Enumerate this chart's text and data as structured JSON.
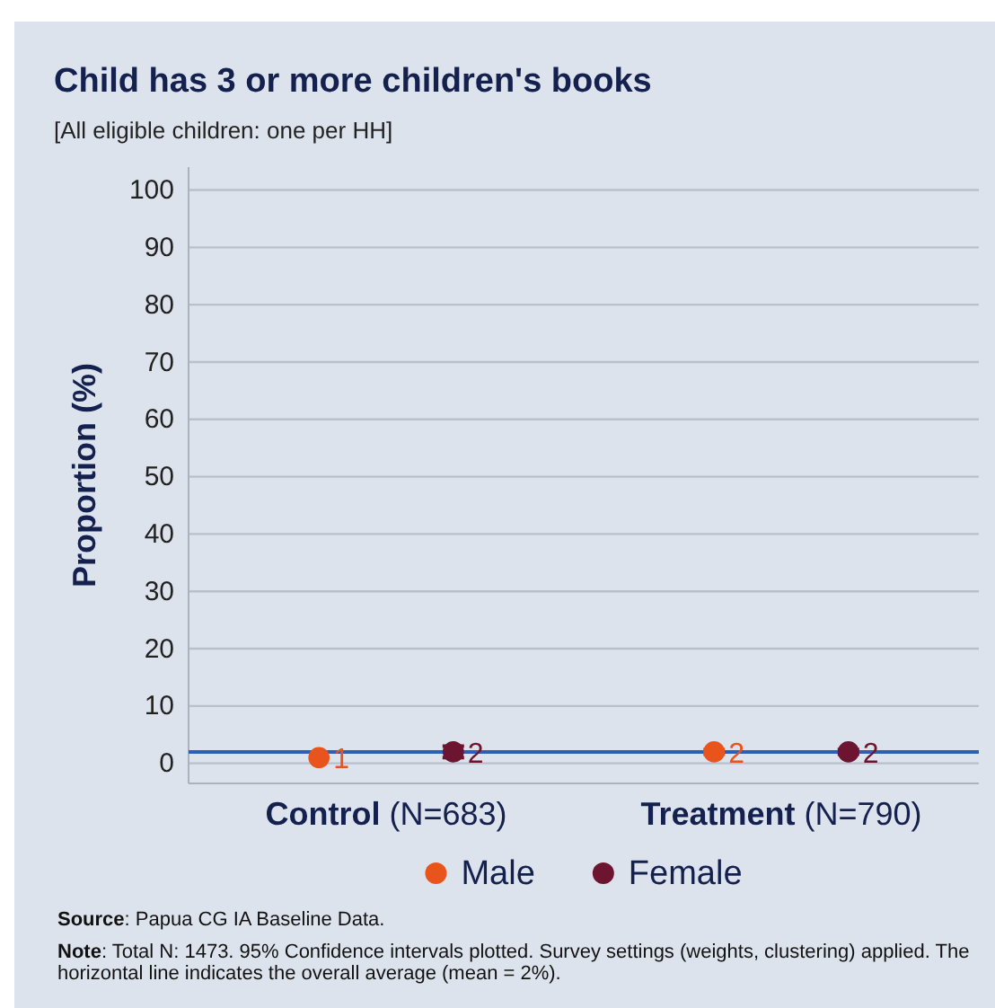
{
  "chart_data": {
    "type": "scatter",
    "title": "Child has 3 or more children's books",
    "subtitle": "[All eligible children: one per HH]",
    "ylabel": "Proportion (%)",
    "categories": [
      "Control (N=683)",
      "Treatment (N=790)"
    ],
    "series": [
      {
        "name": "Male",
        "color": "#e8541c",
        "values": [
          1,
          2
        ],
        "errors": [
          null,
          0.4
        ]
      },
      {
        "name": "Female",
        "color": "#6d1530",
        "values": [
          2,
          2
        ],
        "errors": [
          1,
          0.4
        ]
      }
    ],
    "ylim": [
      -3.5,
      104
    ],
    "yticks": [
      0,
      10,
      20,
      30,
      40,
      50,
      60,
      70,
      80,
      90,
      100
    ],
    "grid": "y",
    "legend": "bottom",
    "marker": "circle",
    "data_labels": true,
    "ref_lines": [
      {
        "axis": "y",
        "value": 2,
        "color": "#2f5fb3"
      }
    ],
    "annotations": [
      "Source: Papua CG IA Baseline Data.",
      "Note: Total N: 1473. 95% Confidence intervals plotted. Survey settings (weights, clustering) applied. The horizontal line indicates the overall average (mean = 2%)."
    ]
  }
}
